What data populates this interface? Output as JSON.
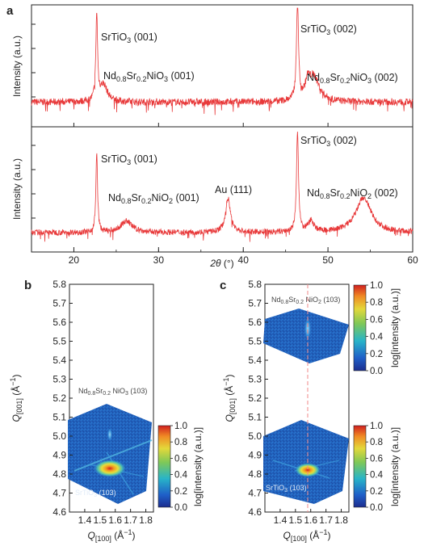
{
  "chart_data": [
    {
      "panel": "a",
      "type": "line",
      "xlabel": "2θ (°)",
      "xlim": [
        15,
        60
      ],
      "xticks": [
        "20",
        "30",
        "40",
        "50",
        "60"
      ],
      "subplots": [
        {
          "ylabel": "Intensity (a.u.)",
          "baseline": 0.18,
          "noise": 0.03,
          "peaks": [
            {
              "x": 22.7,
              "height": 0.75,
              "width": 0.12
            },
            {
              "x": 23.5,
              "height": 0.15,
              "width": 0.55
            },
            {
              "x": 46.4,
              "height": 0.88,
              "width": 0.14
            },
            {
              "x": 47.6,
              "height": 0.12,
              "width": 0.3
            },
            {
              "x": 48.3,
              "height": 0.22,
              "width": 0.8
            }
          ],
          "annotations": [
            {
              "text": "SrTiO",
              "sub": "3",
              "suffix": " (001)"
            },
            {
              "text": "Nd",
              "sub": "0.8",
              "mid": "Sr",
              "sub2": "0.2",
              "tail": "NiO",
              "sub3": "3",
              "suffix": " (001)"
            },
            {
              "text": "SrTiO",
              "sub": "3",
              "suffix": " (002)"
            },
            {
              "text": "Nd",
              "sub": "0.8",
              "mid": "Sr",
              "sub2": "0.2",
              "tail": "NiO",
              "sub3": "3",
              "suffix": " (002)"
            }
          ]
        },
        {
          "ylabel": "Intensity (a.u.)",
          "baseline": 0.12,
          "noise": 0.025,
          "peaks": [
            {
              "x": 22.7,
              "height": 0.68,
              "width": 0.12
            },
            {
              "x": 26.2,
              "height": 0.1,
              "width": 0.8
            },
            {
              "x": 38.2,
              "height": 0.3,
              "width": 0.35
            },
            {
              "x": 46.4,
              "height": 0.88,
              "width": 0.14
            },
            {
              "x": 48.0,
              "height": 0.1,
              "width": 0.4
            },
            {
              "x": 54.2,
              "height": 0.3,
              "width": 1.1
            }
          ],
          "annotations": [
            {
              "text": "SrTiO",
              "sub": "3",
              "suffix": " (001)"
            },
            {
              "text": "Nd",
              "sub": "0.8",
              "mid": "Sr",
              "sub2": "0.2",
              "tail": "NiO",
              "sub3": "2",
              "suffix": " (001)"
            },
            {
              "text": "Au (111)"
            },
            {
              "text": "SrTiO",
              "sub": "3",
              "suffix": " (002)"
            },
            {
              "text": "Nd",
              "sub": "0.8",
              "mid": "Sr",
              "sub2": "0.2",
              "tail": "NiO",
              "sub3": "2",
              "suffix": " (002)"
            }
          ]
        }
      ]
    },
    {
      "panel": "b",
      "type": "heatmap",
      "xlabel": "Q[100] (Å−1)",
      "ylabel": "Q[001] (Å−1)",
      "xlim": [
        1.3,
        1.85
      ],
      "ylim": [
        4.6,
        5.8
      ],
      "xticks": [
        "1.4",
        "1.5",
        "1.6",
        "1.7",
        "1.8"
      ],
      "yticks": [
        "4.6",
        "4.7",
        "4.8",
        "4.9",
        "5.0",
        "5.1",
        "5.2",
        "5.3",
        "5.4",
        "5.5",
        "5.6",
        "5.7",
        "5.8"
      ],
      "film_peak": {
        "label": "Nd0.8Sr0.2NiO3 (103)",
        "q100": 1.59,
        "q001": 4.99
      },
      "substrate_peak": {
        "label": "SrTiO3 (103)",
        "q100": 1.6,
        "q001": 4.82
      },
      "colorbar": {
        "label": "log[intensity (a.u.)]",
        "ticks": [
          "0.0",
          "0.2",
          "0.4",
          "0.6",
          "0.8",
          "1.0"
        ]
      }
    },
    {
      "panel": "c",
      "type": "heatmap",
      "xlabel": "Q[100] (Å−1)",
      "ylabel": "Q[001] (Å−1)",
      "xlim": [
        1.3,
        1.85
      ],
      "ylim": [
        4.6,
        5.8
      ],
      "xticks": [
        "1.4",
        "1.5",
        "1.6",
        "1.7",
        "1.8"
      ],
      "yticks": [
        "4.6",
        "4.7",
        "4.8",
        "4.9",
        "5.0",
        "5.1",
        "5.2",
        "5.3",
        "5.4",
        "5.5",
        "5.6",
        "5.7",
        "5.8"
      ],
      "film_peak": {
        "label": "Nd0.8Sr0.2NiO2 (103)",
        "q100": 1.6,
        "q001": 5.61
      },
      "substrate_peak": {
        "label": "SrTiO3 (103)",
        "q100": 1.6,
        "q001": 4.82
      },
      "colorbars": [
        {
          "label": "log[intensity (a.u.)]",
          "ticks": [
            "0.0",
            "0.2",
            "0.4",
            "0.6",
            "0.8",
            "1.0"
          ]
        },
        {
          "label": "log[intensity (a.u.)]",
          "ticks": [
            "0.0",
            "0.2",
            "0.4",
            "0.6",
            "0.8",
            "1.0"
          ]
        }
      ]
    }
  ],
  "colors": {
    "xrd_line": "#e8393a",
    "map_bg": "#1d5fb4",
    "guide_line": "#f08a8a"
  }
}
